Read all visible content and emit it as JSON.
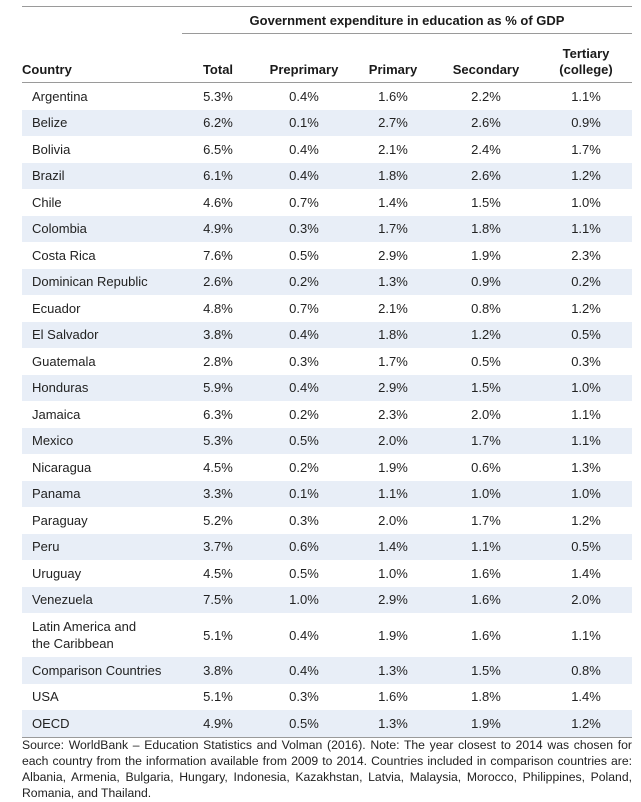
{
  "table": {
    "group_header": "Government expenditure in education as % of GDP",
    "columns": [
      "Country",
      "Total",
      "Preprimary",
      "Primary",
      "Secondary",
      "Tertiary (college)"
    ],
    "tertiary_line1": "Tertiary",
    "tertiary_line2": "(college)",
    "rows": [
      {
        "country": "Argentina",
        "total": "5.3%",
        "preprimary": "0.4%",
        "primary": "1.6%",
        "secondary": "2.2%",
        "tertiary": "1.1%"
      },
      {
        "country": "Belize",
        "total": "6.2%",
        "preprimary": "0.1%",
        "primary": "2.7%",
        "secondary": "2.6%",
        "tertiary": "0.9%"
      },
      {
        "country": "Bolivia",
        "total": "6.5%",
        "preprimary": "0.4%",
        "primary": "2.1%",
        "secondary": "2.4%",
        "tertiary": "1.7%"
      },
      {
        "country": "Brazil",
        "total": "6.1%",
        "preprimary": "0.4%",
        "primary": "1.8%",
        "secondary": "2.6%",
        "tertiary": "1.2%"
      },
      {
        "country": "Chile",
        "total": "4.6%",
        "preprimary": "0.7%",
        "primary": "1.4%",
        "secondary": "1.5%",
        "tertiary": "1.0%"
      },
      {
        "country": "Colombia",
        "total": "4.9%",
        "preprimary": "0.3%",
        "primary": "1.7%",
        "secondary": "1.8%",
        "tertiary": "1.1%"
      },
      {
        "country": "Costa Rica",
        "total": "7.6%",
        "preprimary": "0.5%",
        "primary": "2.9%",
        "secondary": "1.9%",
        "tertiary": "2.3%"
      },
      {
        "country": "Dominican Republic",
        "total": "2.6%",
        "preprimary": "0.2%",
        "primary": "1.3%",
        "secondary": "0.9%",
        "tertiary": "0.2%"
      },
      {
        "country": "Ecuador",
        "total": "4.8%",
        "preprimary": "0.7%",
        "primary": "2.1%",
        "secondary": "0.8%",
        "tertiary": "1.2%"
      },
      {
        "country": "El Salvador",
        "total": "3.8%",
        "preprimary": "0.4%",
        "primary": "1.8%",
        "secondary": "1.2%",
        "tertiary": "0.5%"
      },
      {
        "country": "Guatemala",
        "total": "2.8%",
        "preprimary": "0.3%",
        "primary": "1.7%",
        "secondary": "0.5%",
        "tertiary": "0.3%"
      },
      {
        "country": "Honduras",
        "total": "5.9%",
        "preprimary": "0.4%",
        "primary": "2.9%",
        "secondary": "1.5%",
        "tertiary": "1.0%"
      },
      {
        "country": "Jamaica",
        "total": "6.3%",
        "preprimary": "0.2%",
        "primary": "2.3%",
        "secondary": "2.0%",
        "tertiary": "1.1%"
      },
      {
        "country": "Mexico",
        "total": "5.3%",
        "preprimary": "0.5%",
        "primary": "2.0%",
        "secondary": "1.7%",
        "tertiary": "1.1%"
      },
      {
        "country": "Nicaragua",
        "total": "4.5%",
        "preprimary": "0.2%",
        "primary": "1.9%",
        "secondary": "0.6%",
        "tertiary": "1.3%"
      },
      {
        "country": "Panama",
        "total": "3.3%",
        "preprimary": "0.1%",
        "primary": "1.1%",
        "secondary": "1.0%",
        "tertiary": "1.0%"
      },
      {
        "country": "Paraguay",
        "total": "5.2%",
        "preprimary": "0.3%",
        "primary": "2.0%",
        "secondary": "1.7%",
        "tertiary": "1.2%"
      },
      {
        "country": "Peru",
        "total": "3.7%",
        "preprimary": "0.6%",
        "primary": "1.4%",
        "secondary": "1.1%",
        "tertiary": "0.5%"
      },
      {
        "country": "Uruguay",
        "total": "4.5%",
        "preprimary": "0.5%",
        "primary": "1.0%",
        "secondary": "1.6%",
        "tertiary": "1.4%"
      },
      {
        "country": "Venezuela",
        "total": "7.5%",
        "preprimary": "1.0%",
        "primary": "2.9%",
        "secondary": "1.6%",
        "tertiary": "2.0%"
      },
      {
        "country_line1": "Latin America and",
        "country_line2": "the Caribbean",
        "total": "5.1%",
        "preprimary": "0.4%",
        "primary": "1.9%",
        "secondary": "1.6%",
        "tertiary": "1.1%"
      },
      {
        "country": "Comparison Countries",
        "total": "3.8%",
        "preprimary": "0.4%",
        "primary": "1.3%",
        "secondary": "1.5%",
        "tertiary": "0.8%"
      },
      {
        "country": "USA",
        "total": "5.1%",
        "preprimary": "0.3%",
        "primary": "1.6%",
        "secondary": "1.8%",
        "tertiary": "1.4%"
      },
      {
        "country": "OECD",
        "total": "4.9%",
        "preprimary": "0.5%",
        "primary": "1.3%",
        "secondary": "1.9%",
        "tertiary": "1.2%"
      }
    ]
  },
  "source_note": "Source: WorldBank – Education Statistics and Volman (2016). Note: The year closest to 2014 was chosen for each country from the information available from 2009 to 2014. Countries included in comparison countries are: Albania, Armenia, Bulgaria, Hungary, Indonesia, Kazakhstan,  Latvia, Malaysia, Morocco, Philippines, Poland, Romania, and Thailand.",
  "colors": {
    "stripe": "#e8eef7",
    "rule": "#9a9a9a"
  }
}
